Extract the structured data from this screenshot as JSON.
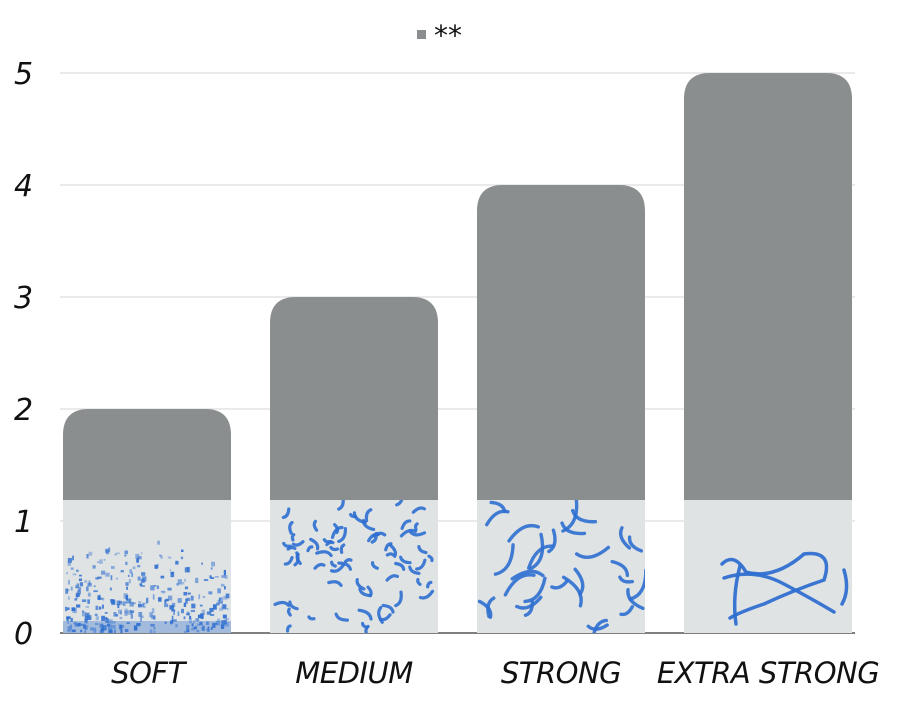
{
  "chart_data": {
    "type": "bar",
    "categories": [
      "SOFT",
      "MEDIUM",
      "STRONG",
      "EXTRA STRONG"
    ],
    "series": [
      {
        "name": "**",
        "values": [
          2,
          3,
          4,
          5
        ]
      }
    ],
    "title": "",
    "xlabel": "",
    "ylabel": "",
    "ylim": [
      0,
      5
    ],
    "yticks": [
      "0",
      "1",
      "2",
      "3",
      "4",
      "5"
    ],
    "grid": true,
    "legend_position": "top-center",
    "legend_label": "**",
    "bar_color": "#8b8e8e",
    "inset_images": [
      {
        "category": "SOFT",
        "depicts": "fine-blue-speckles"
      },
      {
        "category": "MEDIUM",
        "depicts": "short-blue-fragments"
      },
      {
        "category": "STRONG",
        "depicts": "medium-blue-strands"
      },
      {
        "category": "EXTRA STRONG",
        "depicts": "long-blue-strands"
      }
    ]
  }
}
